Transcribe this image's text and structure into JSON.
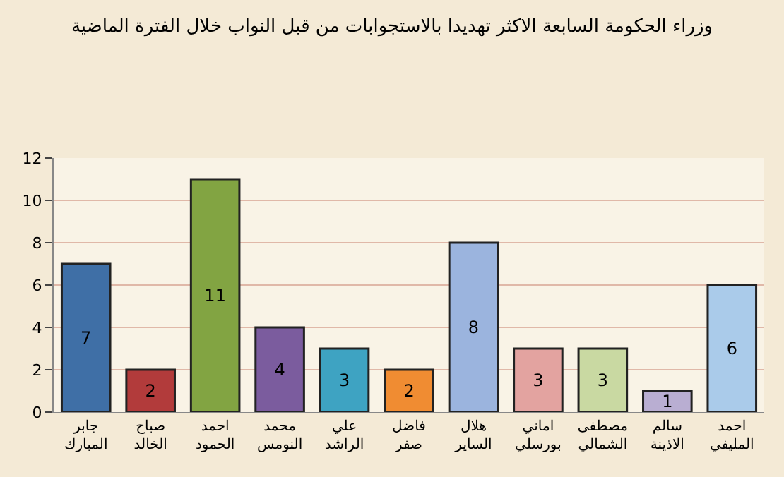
{
  "chart_data": {
    "type": "bar",
    "title": "وزراء الحكومة السابعة الاكثر تهديدا بالاستجوابات من قبل النواب خلال الفترة الماضية",
    "categories": [
      "جابر\nالمبارك",
      "صباح\nالخالد",
      "احمد\nالحمود",
      "محمد\nالنومس",
      "علي\nالراشد",
      "فاضل\nصفر",
      "هلال\nالساير",
      "اماني\nبورسلي",
      "مصطفى\nالشمالي",
      "سالم\nالاذينة",
      "احمد\nالمليفي"
    ],
    "values": [
      7,
      2,
      11,
      4,
      3,
      2,
      8,
      3,
      3,
      1,
      6
    ],
    "colors": [
      "#3f6fa6",
      "#b23b3b",
      "#82a442",
      "#7b5c9e",
      "#3ea3c2",
      "#f08c32",
      "#9bb4de",
      "#e3a3a0",
      "#c9d9a2",
      "#b9aed2",
      "#aacbea"
    ],
    "ylim": [
      0,
      12
    ],
    "yticks": [
      0,
      2,
      4,
      6,
      8,
      10,
      12
    ],
    "grid": "y",
    "data_labels": true
  }
}
